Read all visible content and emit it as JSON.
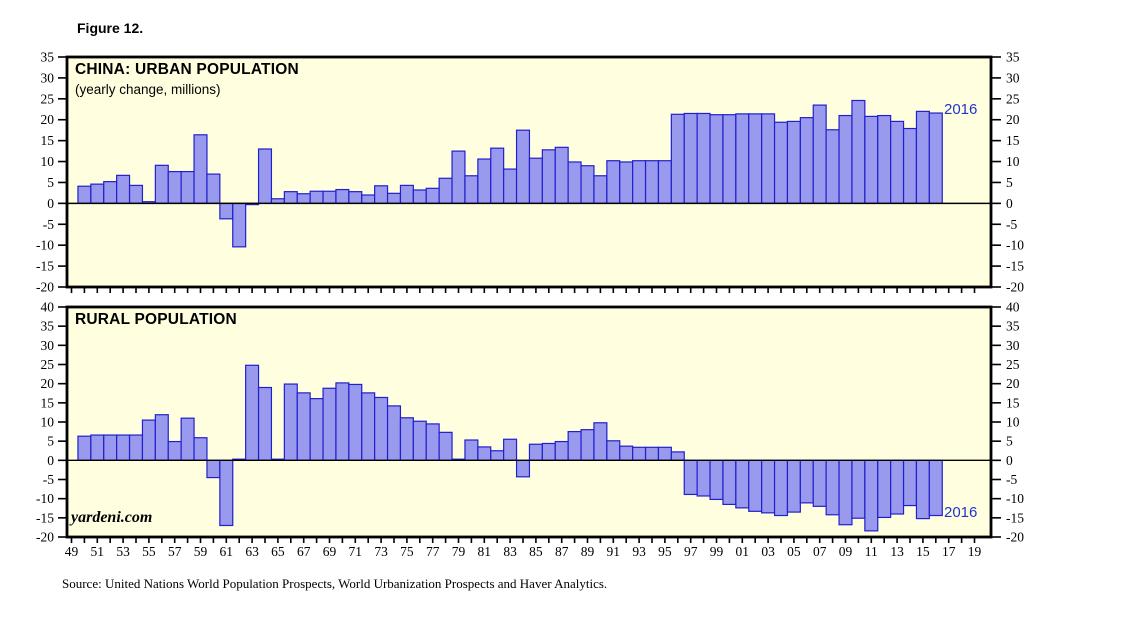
{
  "figure_label": "Figure 12.",
  "watermark": "yardeni.com",
  "source_note": "Source: United Nations World Population Prospects, World Urbanization Prospects and Haver Analytics.",
  "colors": {
    "plot_bg": "#ffffe0",
    "bar_fill": "#9999ee",
    "bar_stroke": "#2020cc",
    "annotation": "#2233cc",
    "frame": "#000000"
  },
  "x_axis": {
    "start_year": 1949,
    "end_year": 2019,
    "tick_every": 1,
    "label_every": 2,
    "labels": [
      "49",
      "51",
      "53",
      "55",
      "57",
      "59",
      "61",
      "63",
      "65",
      "67",
      "69",
      "71",
      "73",
      "75",
      "77",
      "79",
      "81",
      "83",
      "85",
      "87",
      "89",
      "91",
      "93",
      "95",
      "97",
      "99",
      "01",
      "03",
      "05",
      "07",
      "09",
      "11",
      "13",
      "15",
      "17",
      "19"
    ]
  },
  "chart_data": [
    {
      "type": "bar",
      "title": "CHINA: URBAN POPULATION",
      "subtitle": "(yearly change, millions)",
      "annotation": "2016",
      "ylim": [
        -20,
        35
      ],
      "ytick_step": 5,
      "grid": false,
      "x_start_year": 1950,
      "x_end_year": 2016,
      "values": [
        4.1,
        4.6,
        5.2,
        6.7,
        4.3,
        0.4,
        9.1,
        7.6,
        7.6,
        16.4,
        7.0,
        -3.7,
        -10.4,
        -0.3,
        13.0,
        1.1,
        2.8,
        2.3,
        2.9,
        2.9,
        3.3,
        2.8,
        2.0,
        4.2,
        2.4,
        4.3,
        3.2,
        3.6,
        6.0,
        12.5,
        6.6,
        10.6,
        13.2,
        8.2,
        17.5,
        10.8,
        12.8,
        13.4,
        9.9,
        9.0,
        6.6,
        10.2,
        9.9,
        10.2,
        10.2,
        10.2,
        21.3,
        21.5,
        21.5,
        21.2,
        21.2,
        21.4,
        21.4,
        21.4,
        19.4,
        19.6,
        20.5,
        23.5,
        17.6,
        21.0,
        24.6,
        20.8,
        21.0,
        19.6,
        17.9,
        22.0,
        21.6
      ]
    },
    {
      "type": "bar",
      "title": "RURAL POPULATION",
      "subtitle": "",
      "annotation": "2016",
      "ylim": [
        -20,
        40
      ],
      "ytick_step": 5,
      "grid": false,
      "x_start_year": 1950,
      "x_end_year": 2016,
      "values": [
        6.3,
        6.6,
        6.6,
        6.6,
        6.6,
        10.5,
        11.9,
        4.9,
        11.0,
        5.9,
        -4.5,
        -17.0,
        0.3,
        24.8,
        19.0,
        0.3,
        19.9,
        17.6,
        16.1,
        18.8,
        20.2,
        19.8,
        17.6,
        16.4,
        14.2,
        11.1,
        10.2,
        9.5,
        7.3,
        0.3,
        5.3,
        3.5,
        2.5,
        5.5,
        -4.3,
        4.2,
        4.4,
        4.9,
        7.5,
        8.0,
        9.8,
        5.1,
        3.7,
        3.4,
        3.4,
        3.4,
        2.2,
        -8.9,
        -9.3,
        -10.2,
        -11.5,
        -12.4,
        -13.3,
        -13.7,
        -14.4,
        -13.5,
        -11.1,
        -12.0,
        -14.2,
        -16.8,
        -15.1,
        -18.4,
        -14.9,
        -14.0,
        -11.8,
        -15.2,
        -14.4
      ]
    }
  ]
}
